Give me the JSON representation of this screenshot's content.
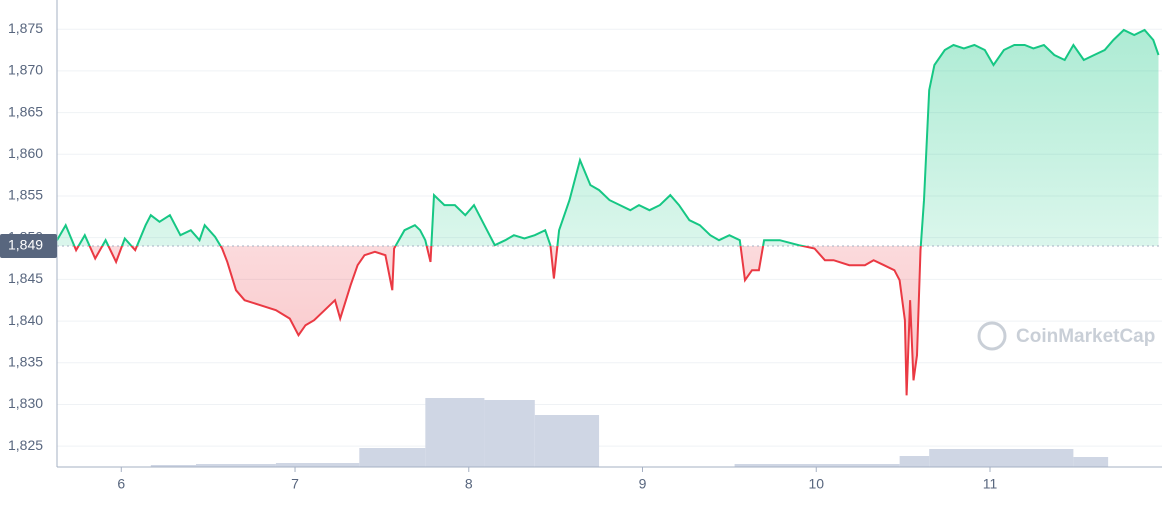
{
  "chart_data": {
    "type": "line",
    "watermark": "CoinMarketCap",
    "xlim": [
      5.63,
      11.99
    ],
    "xticks": [
      6,
      7,
      8,
      9,
      10,
      11
    ],
    "ylim": [
      1822.5,
      1878.5
    ],
    "yticks": [
      {
        "value": 1825,
        "label": "1,825"
      },
      {
        "value": 1830,
        "label": "1,830"
      },
      {
        "value": 1835,
        "label": "1,835"
      },
      {
        "value": 1840,
        "label": "1,840"
      },
      {
        "value": 1845,
        "label": "1,845"
      },
      {
        "value": 1850,
        "label": "1,850"
      },
      {
        "value": 1855,
        "label": "1,855"
      },
      {
        "value": 1860,
        "label": "1,860"
      },
      {
        "value": 1865,
        "label": "1,865"
      },
      {
        "value": 1870,
        "label": "1,870"
      },
      {
        "value": 1875,
        "label": "1,875"
      }
    ],
    "grid": true,
    "baseline": {
      "value": 1849,
      "label": "1,849"
    },
    "colors": {
      "above": "#16c784",
      "below": "#ea3943"
    },
    "x": [
      5.63,
      5.68,
      5.74,
      5.79,
      5.85,
      5.91,
      5.97,
      6.02,
      6.08,
      6.14,
      6.17,
      6.22,
      6.28,
      6.34,
      6.4,
      6.45,
      6.48,
      6.54,
      6.58,
      6.61,
      6.66,
      6.71,
      6.8,
      6.89,
      6.97,
      7.02,
      7.06,
      7.11,
      7.17,
      7.23,
      7.26,
      7.32,
      7.36,
      7.4,
      7.46,
      7.52,
      7.56,
      7.57,
      7.63,
      7.69,
      7.72,
      7.75,
      7.78,
      7.8,
      7.86,
      7.92,
      7.98,
      8.03,
      8.09,
      8.15,
      8.21,
      8.26,
      8.32,
      8.38,
      8.44,
      8.47,
      8.49,
      8.52,
      8.58,
      8.64,
      8.7,
      8.75,
      8.81,
      8.87,
      8.93,
      8.98,
      9.04,
      9.1,
      9.16,
      9.21,
      9.27,
      9.33,
      9.39,
      9.44,
      9.5,
      9.56,
      9.59,
      9.63,
      9.67,
      9.7,
      9.79,
      9.9,
      9.99,
      10.05,
      10.1,
      10.19,
      10.28,
      10.33,
      10.39,
      10.45,
      10.48,
      10.51,
      10.52,
      10.54,
      10.56,
      10.58,
      10.6,
      10.62,
      10.65,
      10.68,
      10.74,
      10.79,
      10.85,
      10.91,
      10.97,
      11.02,
      11.08,
      11.14,
      11.2,
      11.25,
      11.31,
      11.37,
      11.43,
      11.48,
      11.54,
      11.6,
      11.66,
      11.71,
      11.77,
      11.83,
      11.89,
      11.94,
      11.97
    ],
    "values": [
      1849.7,
      1851.5,
      1848.5,
      1850.3,
      1847.5,
      1849.7,
      1847.1,
      1849.9,
      1848.5,
      1851.5,
      1852.7,
      1851.9,
      1852.7,
      1850.3,
      1850.9,
      1849.7,
      1851.5,
      1850.1,
      1848.7,
      1847.1,
      1843.7,
      1842.5,
      1841.9,
      1841.3,
      1840.3,
      1838.3,
      1839.5,
      1840.1,
      1841.3,
      1842.5,
      1840.3,
      1844.3,
      1846.7,
      1847.9,
      1848.3,
      1847.9,
      1843.7,
      1848.7,
      1850.9,
      1851.5,
      1850.9,
      1849.7,
      1847.1,
      1855.1,
      1853.9,
      1853.9,
      1852.7,
      1853.9,
      1851.5,
      1849.1,
      1849.7,
      1850.3,
      1849.9,
      1850.3,
      1850.9,
      1849.1,
      1845.1,
      1850.9,
      1854.5,
      1859.3,
      1856.3,
      1855.7,
      1854.5,
      1853.9,
      1853.3,
      1853.9,
      1853.3,
      1853.9,
      1855.1,
      1853.9,
      1852.1,
      1851.5,
      1850.3,
      1849.7,
      1850.3,
      1849.7,
      1844.9,
      1846.1,
      1846.1,
      1849.7,
      1849.7,
      1849.1,
      1848.7,
      1847.3,
      1847.3,
      1846.7,
      1846.7,
      1847.3,
      1846.7,
      1846.1,
      1844.9,
      1840.1,
      1831.1,
      1842.5,
      1832.9,
      1835.9,
      1848.5,
      1854.5,
      1867.7,
      1870.7,
      1872.5,
      1873.1,
      1872.7,
      1873.1,
      1872.5,
      1870.7,
      1872.5,
      1873.1,
      1873.1,
      1872.7,
      1873.1,
      1871.9,
      1871.3,
      1873.1,
      1871.3,
      1871.9,
      1872.5,
      1873.7,
      1874.9,
      1874.3,
      1874.9,
      1873.7,
      1871.9
    ],
    "volume": {
      "color": "#cfd6e4",
      "ylim": [
        0,
        100
      ],
      "bins": [
        6.17,
        6.43,
        6.89,
        7.37,
        7.75,
        8.09,
        8.38,
        8.75,
        9.53,
        10.48,
        10.65,
        11.48,
        11.68
      ],
      "values": [
        2,
        3,
        4,
        19,
        69,
        67,
        52,
        0,
        3,
        11,
        18,
        10
      ]
    }
  }
}
